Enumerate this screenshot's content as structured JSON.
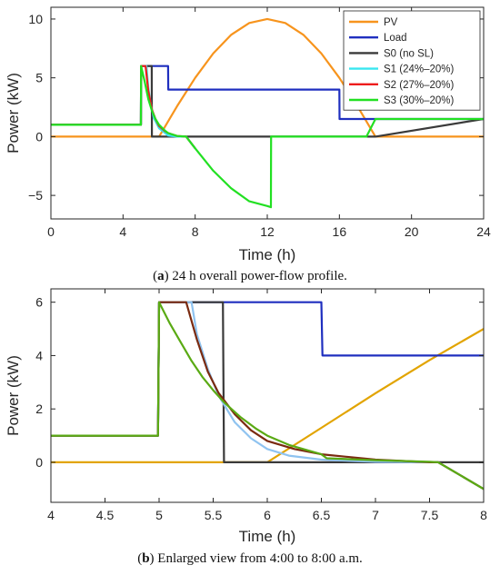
{
  "captions": {
    "a_letter": "a",
    "a_text": " 24 h overall power-flow profile.",
    "b_letter": "b",
    "b_text": " Enlarged view from 4:00 to 8:00 a.m."
  },
  "chart_data": [
    {
      "type": "line",
      "xlabel": "Time (h)",
      "ylabel": "Power (kW)",
      "xlim": [
        0,
        24
      ],
      "ylim": [
        -7,
        11
      ],
      "xticks": [
        "0",
        "4",
        "8",
        "12",
        "16",
        "20",
        "24"
      ],
      "yticks": [
        "-5",
        "0",
        "5",
        "10"
      ],
      "grid": false,
      "legend": "top-right",
      "series": [
        {
          "name": "PV",
          "color": "#f7941d",
          "x": [
            0,
            6,
            7,
            8,
            9,
            10,
            11,
            12,
            13,
            14,
            15,
            16,
            17,
            18,
            24
          ],
          "y": [
            0,
            0,
            2.59,
            5,
            7.07,
            8.66,
            9.66,
            10,
            9.66,
            8.66,
            7.07,
            5,
            2.59,
            0,
            0
          ]
        },
        {
          "name": "Load",
          "color": "#1f2fbf",
          "x": [
            0,
            4.99,
            5,
            6.5,
            6.51,
            16,
            16.01,
            18,
            18.01,
            24
          ],
          "y": [
            1,
            1,
            6,
            6,
            4,
            4,
            1.5,
            1.5,
            1.5,
            1.5
          ]
        },
        {
          "name": "S0 (no SL)",
          "color": "#3a3a3a",
          "x": [
            0,
            4.99,
            5,
            5.59,
            5.6,
            6.5,
            18,
            24
          ],
          "y": [
            1,
            1,
            6,
            6,
            0,
            0,
            0,
            1.5
          ]
        },
        {
          "name": "S1 (24%–20%)",
          "color": "#39e6f0",
          "x": [
            0,
            4.99,
            5,
            5.3,
            5.4,
            5.5,
            5.7,
            6,
            6.5,
            7,
            7.5,
            8
          ],
          "y": [
            1,
            1,
            6,
            6,
            4.2,
            3.1,
            1.6,
            0.7,
            0.1,
            0,
            0,
            -1
          ]
        },
        {
          "name": "S2 (27%–20%)",
          "color": "#ee1c1c",
          "x": [
            0,
            4.99,
            5,
            5.25,
            5.4,
            5.6,
            5.8,
            6,
            6.3,
            6.5,
            7,
            7.5,
            8
          ],
          "y": [
            1,
            1,
            6,
            6,
            3.9,
            2.3,
            1.5,
            0.9,
            0.5,
            0.3,
            0.05,
            0,
            -1
          ]
        },
        {
          "name": "S3 (30%–20%)",
          "color": "#22e022",
          "x": [
            0,
            4.99,
            5,
            5.2,
            5.4,
            5.6,
            5.8,
            6,
            6.3,
            6.5,
            7,
            7.5,
            7.8,
            8,
            9,
            10,
            11,
            12,
            12.2,
            12.21,
            17.5,
            18,
            24
          ],
          "y": [
            1,
            1,
            6,
            4.7,
            3.2,
            2.2,
            1.5,
            1,
            0.55,
            0.3,
            0.05,
            0,
            -0.6,
            -1,
            -2.9,
            -4.4,
            -5.5,
            -5.9,
            -6,
            0,
            0,
            1.5,
            1.5
          ]
        }
      ]
    },
    {
      "type": "line",
      "xlabel": "Time (h)",
      "ylabel": "Power (kW)",
      "xlim": [
        4,
        8
      ],
      "ylim": [
        -1.5,
        6.5
      ],
      "xticks": [
        "4",
        "4.5",
        "5",
        "5.5",
        "6",
        "6.5",
        "7",
        "7.5",
        "8"
      ],
      "yticks": [
        "0",
        "2",
        "4",
        "6"
      ],
      "grid": false,
      "series": [
        {
          "name": "PV",
          "color": "#e2a400",
          "x": [
            4,
            6,
            6.5,
            7,
            7.5,
            8
          ],
          "y": [
            0,
            0,
            1.29,
            2.59,
            3.83,
            5
          ]
        },
        {
          "name": "Load",
          "color": "#1f2fbf",
          "x": [
            4,
            4.99,
            5,
            6.5,
            6.51,
            8
          ],
          "y": [
            1,
            1,
            6,
            6,
            4,
            4
          ]
        },
        {
          "name": "S0 (no SL)",
          "color": "#3a3a3a",
          "x": [
            4,
            4.99,
            5,
            5.59,
            5.6,
            8
          ],
          "y": [
            1,
            1,
            6,
            6,
            0,
            0
          ]
        },
        {
          "name": "S1 (24%–20%)",
          "color": "#8fc3f0",
          "x": [
            4,
            4.99,
            5,
            5.3,
            5.35,
            5.45,
            5.55,
            5.7,
            5.85,
            6,
            6.2,
            6.5,
            7,
            7.5,
            7.58,
            8
          ],
          "y": [
            1,
            1,
            6,
            6,
            4.8,
            3.5,
            2.5,
            1.5,
            0.9,
            0.5,
            0.25,
            0.1,
            0.02,
            0,
            0,
            -1
          ]
        },
        {
          "name": "S2 (27%–20%)",
          "color": "#7a2a10",
          "x": [
            4,
            4.99,
            5,
            5.25,
            5.35,
            5.45,
            5.55,
            5.7,
            5.85,
            6,
            6.25,
            6.5,
            7,
            7.5,
            7.58,
            8
          ],
          "y": [
            1,
            1,
            6,
            6,
            4.6,
            3.4,
            2.6,
            1.8,
            1.2,
            0.8,
            0.5,
            0.3,
            0.1,
            0,
            0,
            -1
          ]
        },
        {
          "name": "S3 (30%–20%)",
          "color": "#5aaa14",
          "x": [
            4,
            4.99,
            5,
            5.1,
            5.2,
            5.3,
            5.4,
            5.5,
            5.6,
            5.75,
            5.9,
            6,
            6.2,
            6.5,
            6.55,
            7,
            7.5,
            7.58,
            8
          ],
          "y": [
            1,
            1,
            6,
            5.2,
            4.5,
            3.8,
            3.2,
            2.7,
            2.25,
            1.7,
            1.25,
            1,
            0.65,
            0.3,
            0.15,
            0.08,
            0.02,
            0,
            -1
          ]
        }
      ]
    }
  ]
}
